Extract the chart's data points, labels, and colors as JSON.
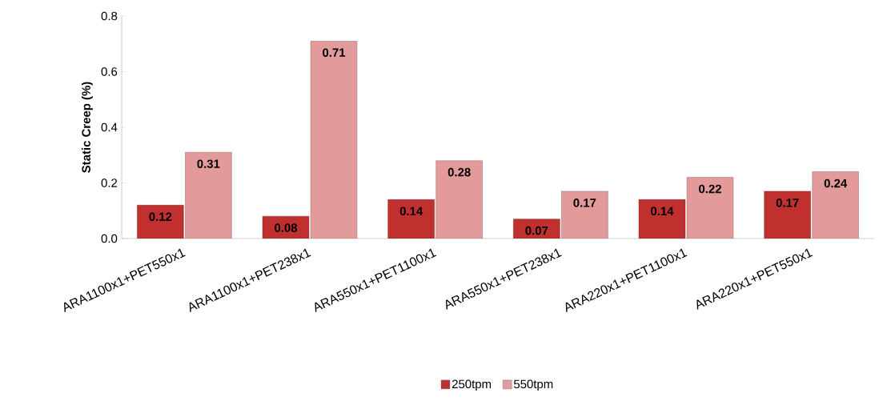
{
  "chart_data": {
    "type": "bar",
    "ylabel": "Static Creep (%)",
    "categories": [
      "ARA1100x1+PET550x1",
      "ARA1100x1+PET238x1",
      "ARA550x1+PET1100x1",
      "ARA550x1+PET238x1",
      "ARA220x1+PET1100x1",
      "ARA220x1+PET550x1"
    ],
    "series": [
      {
        "name": "250tpm",
        "color": "#c0302f",
        "values": [
          0.12,
          0.08,
          0.14,
          0.07,
          0.14,
          0.17
        ]
      },
      {
        "name": "550tpm",
        "color": "#e39a9a",
        "values": [
          0.31,
          0.71,
          0.28,
          0.17,
          0.22,
          0.24
        ]
      }
    ],
    "ylim": [
      0,
      0.8
    ],
    "yticks": [
      {
        "value": 0,
        "label": "0.0"
      },
      0.2,
      0.4,
      0.6,
      0.8
    ],
    "data_labels": true,
    "legend": "bottom",
    "grid": false
  }
}
